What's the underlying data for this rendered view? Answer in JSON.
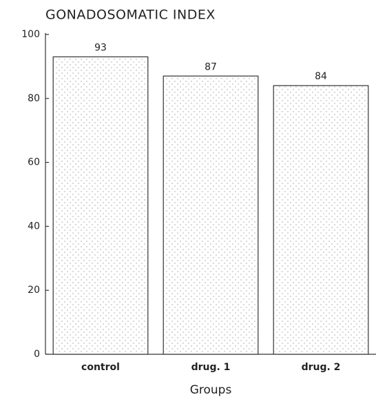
{
  "chart_data": {
    "type": "bar",
    "title": "GONADOSOMATIC INDEX",
    "x_label": "Groups",
    "categories": [
      "control",
      "drug. 1",
      "drug. 2"
    ],
    "values": [
      93,
      87,
      84
    ],
    "color": "#ffffff",
    "ylim": [
      0,
      100
    ],
    "yticks": [
      0,
      20,
      40,
      60,
      80,
      100
    ]
  }
}
